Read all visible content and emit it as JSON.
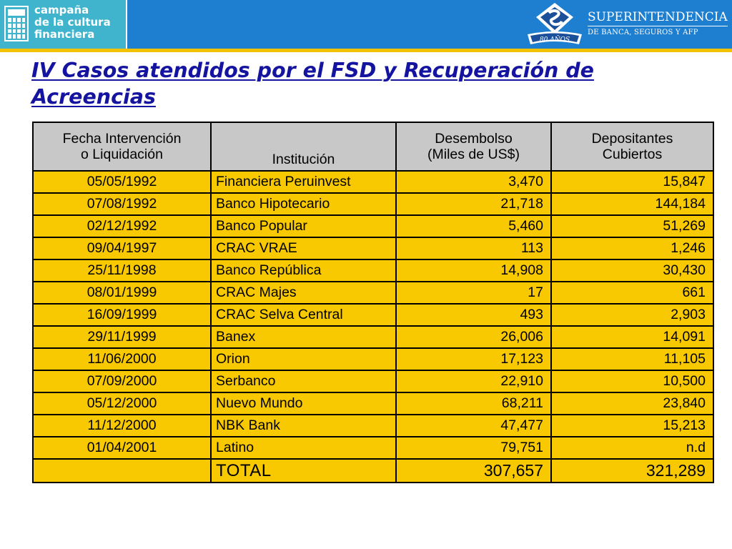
{
  "header": {
    "campaign_lines": [
      "campaña",
      "de la cultura",
      "financiera"
    ],
    "org_name": "SUPERINTENDENCIA",
    "org_subtitle": "DE BANCA, SEGUROS Y AFP",
    "anniversary": "80 AÑOS",
    "colors": {
      "bar": "#1e7fd0",
      "accent": "#f2c200",
      "campaign_bg": "#3fb4cc"
    }
  },
  "title": "IV Casos atendidos por el FSD y Recuperación de Acreencias",
  "table": {
    "headers": [
      [
        "Fecha Intervención",
        "o Liquidación"
      ],
      [
        "Institución"
      ],
      [
        "Desembolso",
        "(Miles de US$)"
      ],
      [
        "Depositantes",
        "Cubiertos"
      ]
    ],
    "rows": [
      {
        "date": "05/05/1992",
        "institution": "Financiera Peruinvest",
        "disbursement": "3,470",
        "depositors": "15,847"
      },
      {
        "date": "07/08/1992",
        "institution": "Banco Hipotecario",
        "disbursement": "21,718",
        "depositors": "144,184"
      },
      {
        "date": "02/12/1992",
        "institution": "Banco Popular",
        "disbursement": "5,460",
        "depositors": "51,269"
      },
      {
        "date": "09/04/1997",
        "institution": "CRAC VRAE",
        "disbursement": "113",
        "depositors": "1,246"
      },
      {
        "date": "25/11/1998",
        "institution": "Banco República",
        "disbursement": "14,908",
        "depositors": "30,430"
      },
      {
        "date": "08/01/1999",
        "institution": "CRAC Majes",
        "disbursement": "17",
        "depositors": "661"
      },
      {
        "date": "16/09/1999",
        "institution": "CRAC Selva Central",
        "disbursement": "493",
        "depositors": "2,903"
      },
      {
        "date": "29/11/1999",
        "institution": "Banex",
        "disbursement": "26,006",
        "depositors": "14,091"
      },
      {
        "date": "11/06/2000",
        "institution": "Orion",
        "disbursement": "17,123",
        "depositors": "11,105"
      },
      {
        "date": "07/09/2000",
        "institution": "Serbanco",
        "disbursement": "22,910",
        "depositors": "10,500"
      },
      {
        "date": "05/12/2000",
        "institution": "Nuevo Mundo",
        "disbursement": "68,211",
        "depositors": "23,840"
      },
      {
        "date": "11/12/2000",
        "institution": "NBK Bank",
        "disbursement": "47,477",
        "depositors": "15,213"
      },
      {
        "date": "01/04/2001",
        "institution": "Latino",
        "disbursement": "79,751",
        "depositors": "n.d"
      }
    ],
    "total": {
      "date": "",
      "label": "TOTAL",
      "disbursement": "307,657",
      "depositors": "321,289"
    },
    "colors": {
      "header_bg": "#c8c8c8",
      "cell_bg": "#f8c900"
    }
  }
}
